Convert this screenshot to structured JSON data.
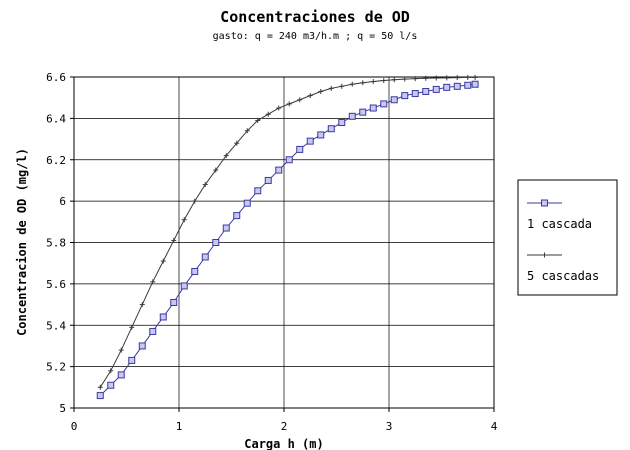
{
  "chart_data": {
    "type": "line",
    "title": "Concentraciones de OD",
    "subtitle": "gasto: q = 240 m3/h.m  ;  q = 50 l/s",
    "xlabel": "Carga h (m)",
    "ylabel": "Concentracion de OD (mg/l)",
    "xlim": [
      0,
      4
    ],
    "ylim": [
      5,
      6.6
    ],
    "xticks": [
      "0",
      "1",
      "2",
      "3",
      "4"
    ],
    "yticks": [
      "5",
      "5.2",
      "5.4",
      "5.6",
      "5.8",
      "6",
      "6.2",
      "6.4",
      "6.6"
    ],
    "grid": true,
    "legend_position": "right",
    "series": [
      {
        "name": "1 cascada",
        "marker": "square",
        "color": "#3a3aa0",
        "x": [
          0.25,
          0.35,
          0.45,
          0.55,
          0.65,
          0.75,
          0.85,
          0.95,
          1.05,
          1.15,
          1.25,
          1.35,
          1.45,
          1.55,
          1.65,
          1.75,
          1.85,
          1.95,
          2.05,
          2.15,
          2.25,
          2.35,
          2.45,
          2.55,
          2.65,
          2.75,
          2.85,
          2.95,
          3.05,
          3.15,
          3.25,
          3.35,
          3.45,
          3.55,
          3.65,
          3.75,
          3.82
        ],
        "y": [
          5.06,
          5.11,
          5.16,
          5.23,
          5.3,
          5.37,
          5.44,
          5.51,
          5.59,
          5.66,
          5.73,
          5.8,
          5.87,
          5.93,
          5.99,
          6.05,
          6.1,
          6.15,
          6.2,
          6.25,
          6.29,
          6.32,
          6.35,
          6.38,
          6.41,
          6.43,
          6.45,
          6.47,
          6.49,
          6.51,
          6.52,
          6.53,
          6.54,
          6.55,
          6.555,
          6.56,
          6.565
        ]
      },
      {
        "name": "5 cascadas",
        "marker": "plus",
        "color": "#3a3a3a",
        "x": [
          0.25,
          0.35,
          0.45,
          0.55,
          0.65,
          0.75,
          0.85,
          0.95,
          1.05,
          1.15,
          1.25,
          1.35,
          1.45,
          1.55,
          1.65,
          1.75,
          1.85,
          1.95,
          2.05,
          2.15,
          2.25,
          2.35,
          2.45,
          2.55,
          2.65,
          2.75,
          2.85,
          2.95,
          3.05,
          3.15,
          3.25,
          3.35,
          3.45,
          3.55,
          3.65,
          3.75,
          3.82
        ],
        "y": [
          5.1,
          5.18,
          5.28,
          5.39,
          5.5,
          5.61,
          5.71,
          5.81,
          5.91,
          6.0,
          6.08,
          6.15,
          6.22,
          6.28,
          6.34,
          6.39,
          6.42,
          6.45,
          6.47,
          6.49,
          6.51,
          6.53,
          6.545,
          6.555,
          6.565,
          6.572,
          6.578,
          6.583,
          6.587,
          6.59,
          6.592,
          6.594,
          6.595,
          6.596,
          6.597,
          6.598,
          6.598
        ]
      }
    ]
  }
}
